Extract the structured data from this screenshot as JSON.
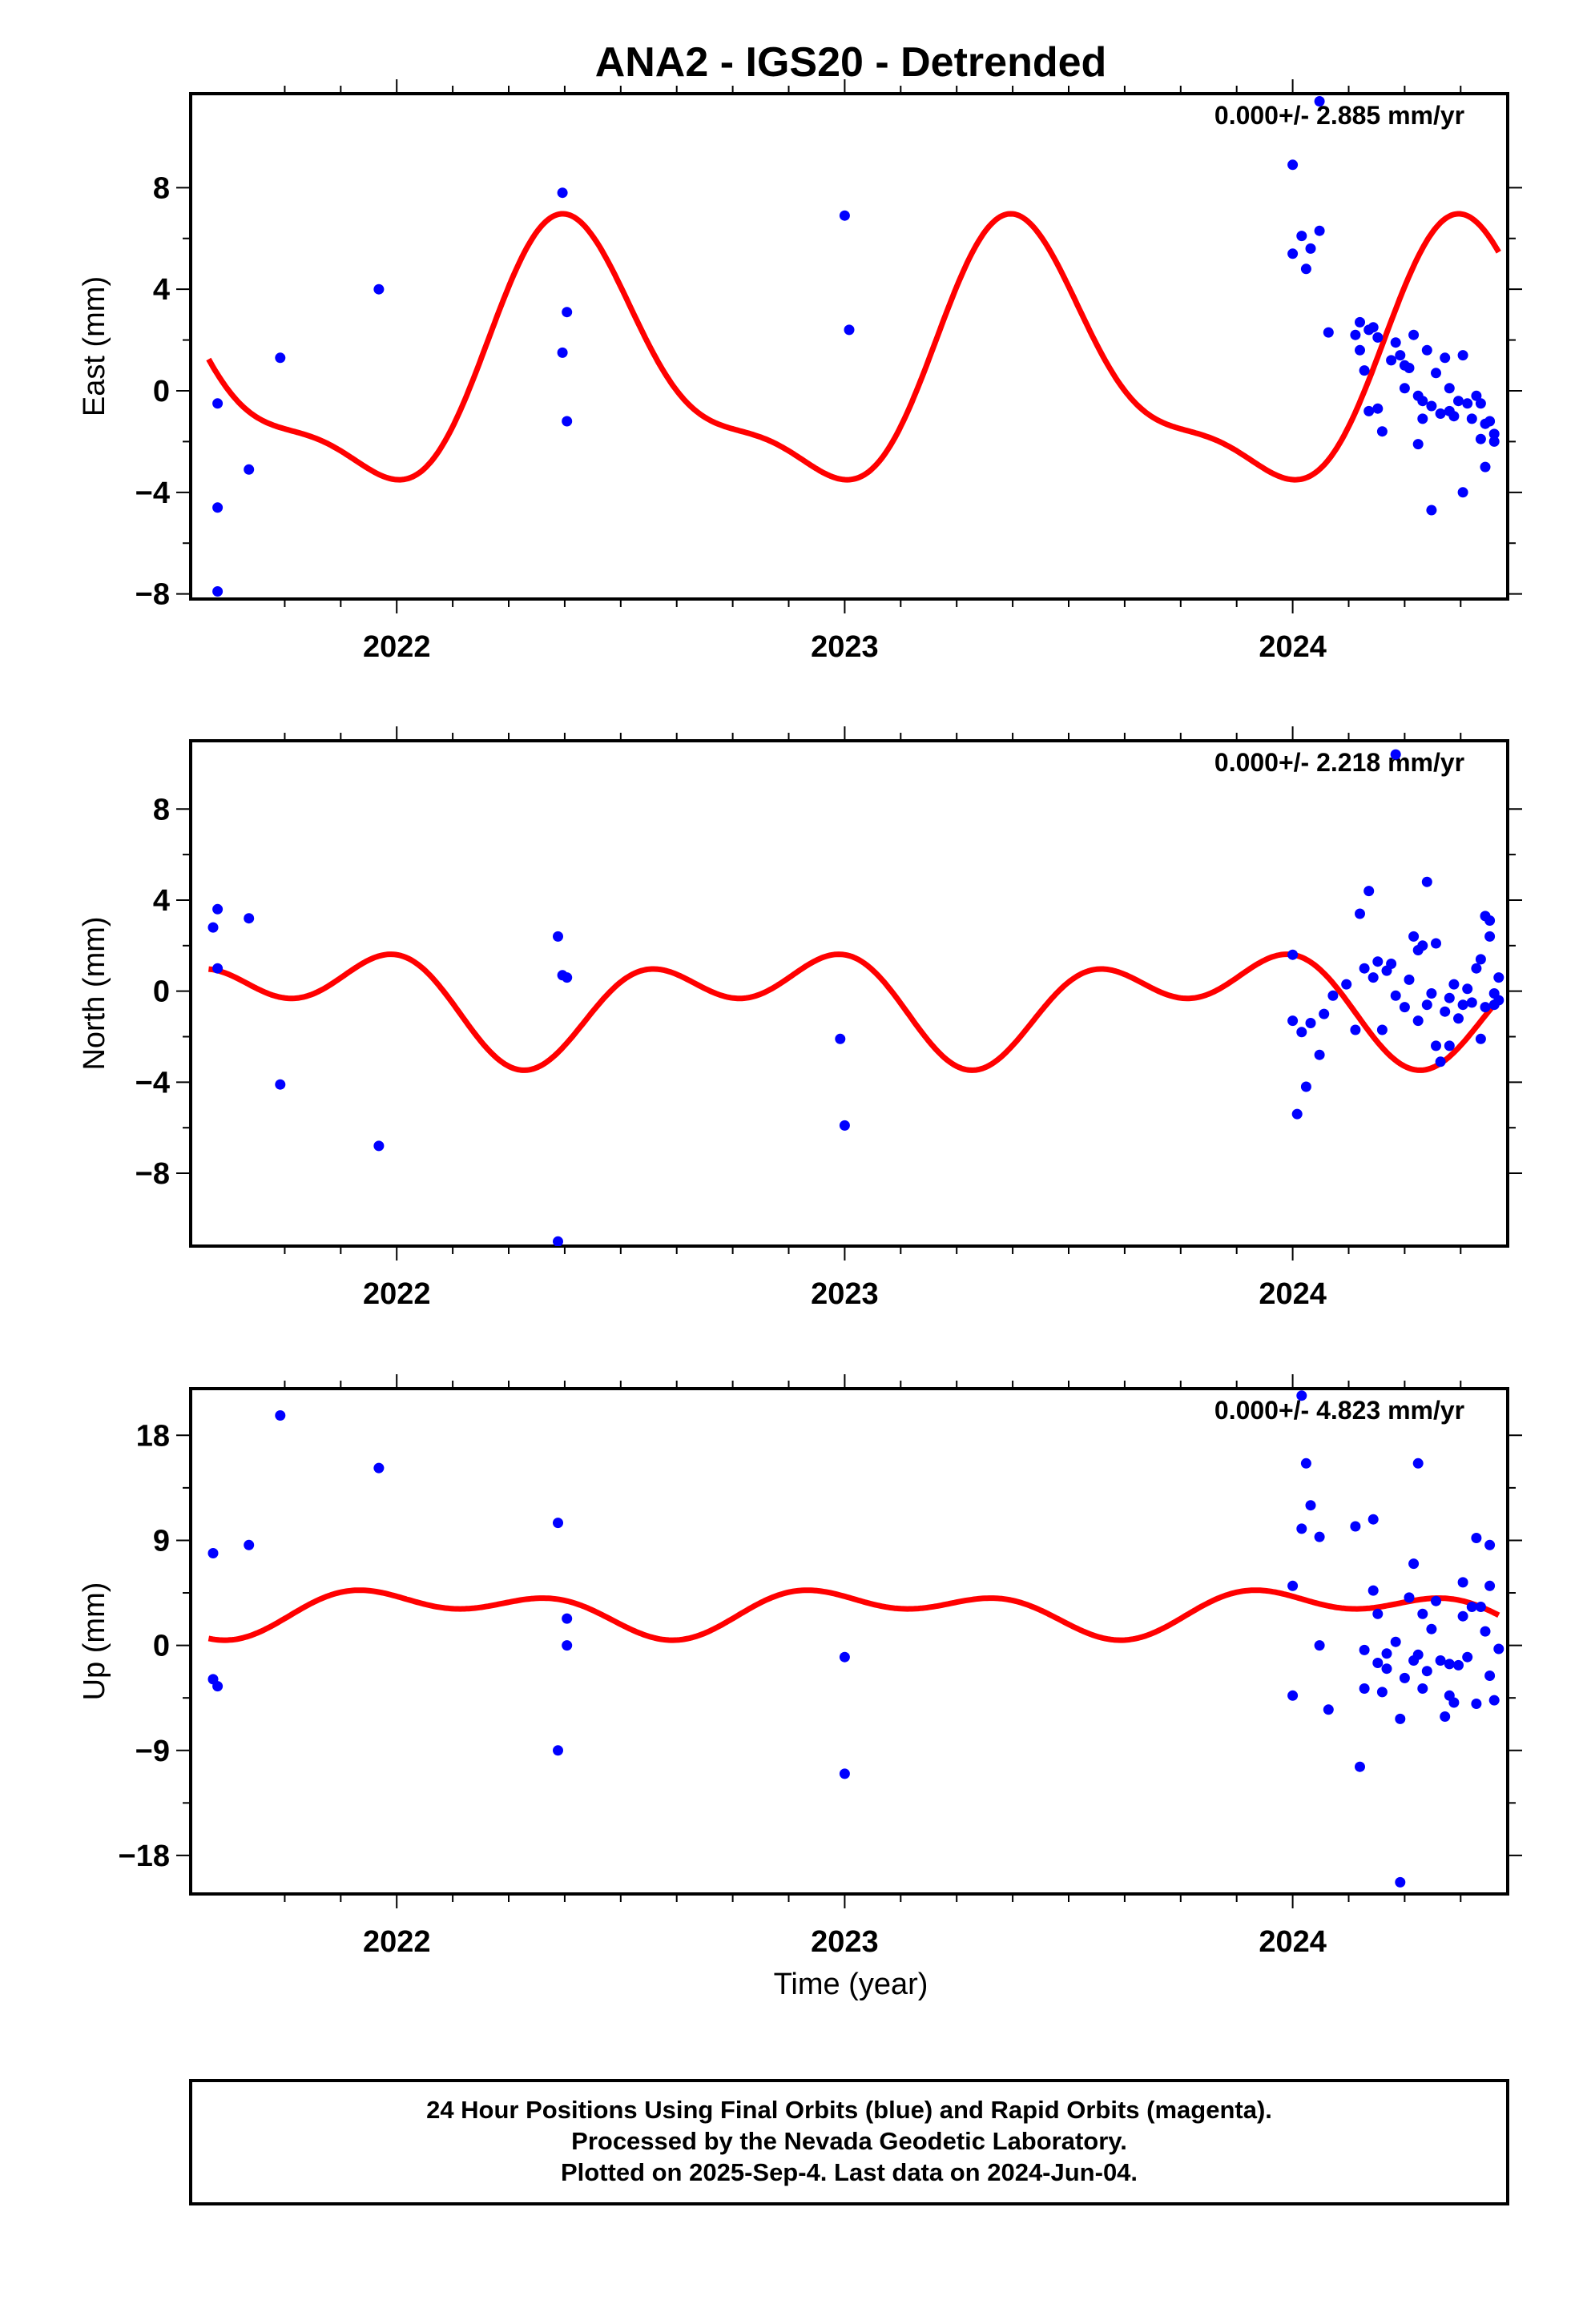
{
  "title": "ANA2 - IGS20 - Detrended",
  "xlabel": "Time (year)",
  "footer": {
    "line1": "24 Hour Positions Using Final Orbits (blue) and Rapid Orbits (magenta).",
    "line2": "Processed by the Nevada Geodetic Laboratory.",
    "line3": "Plotted on 2025-Sep-4. Last data on 2024-Jun-04."
  },
  "colors": {
    "points": "#0000ff",
    "model": "#ff0000",
    "frame": "#000000"
  },
  "chart_data": [
    {
      "type": "scatter",
      "ylabel": "East (mm)",
      "rate": "0.000+/- 2.885 mm/yr",
      "xlim": [
        2021.54,
        2024.48
      ],
      "ylim": [
        -8.2,
        11.7
      ],
      "xticks": [
        2022,
        2023,
        2024
      ],
      "yticks": [
        8,
        4,
        0,
        -4,
        -8
      ],
      "ytick_labels": [
        "8",
        "4",
        "0",
        "−4",
        "−8"
      ],
      "points": [
        [
          2021.6,
          -0.5
        ],
        [
          2021.6,
          -4.6
        ],
        [
          2021.6,
          -7.9
        ],
        [
          2021.67,
          -3.1
        ],
        [
          2021.74,
          1.3
        ],
        [
          2021.96,
          4.0
        ],
        [
          2022.37,
          7.8
        ],
        [
          2022.37,
          1.5
        ],
        [
          2022.38,
          3.1
        ],
        [
          2022.38,
          -1.2
        ],
        [
          2023.0,
          6.9
        ],
        [
          2023.01,
          2.4
        ],
        [
          2024.0,
          8.9
        ],
        [
          2024.0,
          5.4
        ],
        [
          2024.02,
          6.1
        ],
        [
          2024.03,
          4.8
        ],
        [
          2024.04,
          5.6
        ],
        [
          2024.06,
          6.3
        ],
        [
          2024.06,
          11.4
        ],
        [
          2024.08,
          2.3
        ],
        [
          2024.14,
          2.2
        ],
        [
          2024.15,
          1.6
        ],
        [
          2024.15,
          2.7
        ],
        [
          2024.16,
          0.8
        ],
        [
          2024.17,
          -0.8
        ],
        [
          2024.17,
          2.4
        ],
        [
          2024.18,
          2.5
        ],
        [
          2024.19,
          -0.7
        ],
        [
          2024.19,
          2.1
        ],
        [
          2024.2,
          -1.6
        ],
        [
          2024.22,
          1.2
        ],
        [
          2024.23,
          1.9
        ],
        [
          2024.24,
          1.4
        ],
        [
          2024.25,
          1.0
        ],
        [
          2024.25,
          0.1
        ],
        [
          2024.26,
          0.9
        ],
        [
          2024.27,
          2.2
        ],
        [
          2024.28,
          -0.2
        ],
        [
          2024.28,
          -2.1
        ],
        [
          2024.29,
          -0.4
        ],
        [
          2024.29,
          -1.1
        ],
        [
          2024.3,
          1.6
        ],
        [
          2024.31,
          -4.7
        ],
        [
          2024.31,
          -0.6
        ],
        [
          2024.32,
          0.7
        ],
        [
          2024.33,
          -0.9
        ],
        [
          2024.34,
          1.3
        ],
        [
          2024.35,
          -0.8
        ],
        [
          2024.35,
          0.1
        ],
        [
          2024.36,
          -1.0
        ],
        [
          2024.37,
          -0.4
        ],
        [
          2024.38,
          1.4
        ],
        [
          2024.38,
          -4.0
        ],
        [
          2024.39,
          -0.5
        ],
        [
          2024.4,
          -1.1
        ],
        [
          2024.41,
          -0.2
        ],
        [
          2024.42,
          -1.9
        ],
        [
          2024.42,
          -0.5
        ],
        [
          2024.43,
          -1.3
        ],
        [
          2024.43,
          -3.0
        ],
        [
          2024.44,
          -1.2
        ],
        [
          2024.45,
          -2.0
        ],
        [
          2024.45,
          -1.7
        ]
      ],
      "model": {
        "offset": 0.8,
        "annual_a": 2.8,
        "annual_b": -3.8,
        "semi_a": -1.5,
        "semi_b": -0.5,
        "t0": 2021.58,
        "t1": 2024.46
      }
    },
    {
      "type": "scatter",
      "ylabel": "North (mm)",
      "rate": "0.000+/- 2.218 mm/yr",
      "xlim": [
        2021.54,
        2024.48
      ],
      "ylim": [
        -11.2,
        11.0
      ],
      "xticks": [
        2022,
        2023,
        2024
      ],
      "yticks": [
        8,
        4,
        0,
        -4,
        -8
      ],
      "ytick_labels": [
        "8",
        "4",
        "0",
        "−4",
        "−8"
      ],
      "points": [
        [
          2021.59,
          2.8
        ],
        [
          2021.6,
          3.6
        ],
        [
          2021.6,
          1.0
        ],
        [
          2021.67,
          3.2
        ],
        [
          2021.74,
          -4.1
        ],
        [
          2021.96,
          -6.8
        ],
        [
          2022.36,
          -11.0
        ],
        [
          2022.36,
          2.4
        ],
        [
          2022.37,
          0.7
        ],
        [
          2022.38,
          0.6
        ],
        [
          2022.99,
          -2.1
        ],
        [
          2023.0,
          -5.9
        ],
        [
          2024.0,
          1.6
        ],
        [
          2024.0,
          -1.3
        ],
        [
          2024.01,
          -5.4
        ],
        [
          2024.02,
          -1.8
        ],
        [
          2024.03,
          -4.2
        ],
        [
          2024.04,
          -1.4
        ],
        [
          2024.06,
          -2.8
        ],
        [
          2024.07,
          -1.0
        ],
        [
          2024.09,
          -0.2
        ],
        [
          2024.12,
          0.3
        ],
        [
          2024.14,
          -1.7
        ],
        [
          2024.15,
          3.4
        ],
        [
          2024.16,
          1.0
        ],
        [
          2024.17,
          4.4
        ],
        [
          2024.18,
          0.6
        ],
        [
          2024.19,
          1.3
        ],
        [
          2024.2,
          -1.7
        ],
        [
          2024.21,
          0.9
        ],
        [
          2024.22,
          1.2
        ],
        [
          2024.23,
          -0.2
        ],
        [
          2024.23,
          10.4
        ],
        [
          2024.25,
          -0.7
        ],
        [
          2024.26,
          0.5
        ],
        [
          2024.27,
          2.4
        ],
        [
          2024.28,
          -1.3
        ],
        [
          2024.28,
          1.8
        ],
        [
          2024.29,
          2.0
        ],
        [
          2024.3,
          -0.6
        ],
        [
          2024.3,
          4.8
        ],
        [
          2024.31,
          -0.1
        ],
        [
          2024.32,
          2.1
        ],
        [
          2024.32,
          -2.4
        ],
        [
          2024.33,
          -3.1
        ],
        [
          2024.34,
          -0.9
        ],
        [
          2024.35,
          -2.4
        ],
        [
          2024.35,
          -0.3
        ],
        [
          2024.36,
          0.3
        ],
        [
          2024.37,
          -1.2
        ],
        [
          2024.38,
          -0.6
        ],
        [
          2024.39,
          0.1
        ],
        [
          2024.4,
          -0.5
        ],
        [
          2024.41,
          1.0
        ],
        [
          2024.42,
          -2.1
        ],
        [
          2024.42,
          1.4
        ],
        [
          2024.43,
          -0.7
        ],
        [
          2024.43,
          3.3
        ],
        [
          2024.44,
          2.4
        ],
        [
          2024.44,
          3.1
        ],
        [
          2024.45,
          -0.6
        ],
        [
          2024.45,
          -0.1
        ],
        [
          2024.46,
          -0.4
        ],
        [
          2024.46,
          0.6
        ]
      ],
      "model": {
        "offset": -0.4,
        "annual_a": -1.5,
        "annual_b": 0.6,
        "semi_a": 0.5,
        "semi_b": 1.4,
        "t0": 2021.58,
        "t1": 2024.46
      }
    },
    {
      "type": "scatter",
      "ylabel": "Up (mm)",
      "rate": "0.000+/- 4.823 mm/yr",
      "xlim": [
        2021.54,
        2024.48
      ],
      "ylim": [
        -21.3,
        22.0
      ],
      "xticks": [
        2022,
        2023,
        2024
      ],
      "yticks": [
        18,
        9,
        0,
        -9,
        -18
      ],
      "ytick_labels": [
        "18",
        "9",
        "0",
        "−9",
        "−18"
      ],
      "points": [
        [
          2021.59,
          7.9
        ],
        [
          2021.59,
          -2.9
        ],
        [
          2021.6,
          -3.5
        ],
        [
          2021.67,
          8.6
        ],
        [
          2021.74,
          19.7
        ],
        [
          2021.96,
          15.2
        ],
        [
          2022.36,
          10.5
        ],
        [
          2022.36,
          -9.0
        ],
        [
          2022.38,
          2.3
        ],
        [
          2022.38,
          0.0
        ],
        [
          2023.0,
          -1.0
        ],
        [
          2023.0,
          -11.0
        ],
        [
          2024.0,
          5.1
        ],
        [
          2024.0,
          -4.3
        ],
        [
          2024.02,
          21.4
        ],
        [
          2024.02,
          10.0
        ],
        [
          2024.03,
          15.6
        ],
        [
          2024.04,
          12.0
        ],
        [
          2024.06,
          9.3
        ],
        [
          2024.06,
          0.0
        ],
        [
          2024.08,
          -5.5
        ],
        [
          2024.14,
          10.2
        ],
        [
          2024.15,
          -10.4
        ],
        [
          2024.16,
          -3.7
        ],
        [
          2024.16,
          -0.4
        ],
        [
          2024.18,
          10.8
        ],
        [
          2024.18,
          4.7
        ],
        [
          2024.19,
          2.7
        ],
        [
          2024.19,
          -1.5
        ],
        [
          2024.2,
          -4.0
        ],
        [
          2024.21,
          -0.7
        ],
        [
          2024.21,
          -2.0
        ],
        [
          2024.23,
          0.3
        ],
        [
          2024.24,
          -20.3
        ],
        [
          2024.24,
          -6.3
        ],
        [
          2024.25,
          -2.8
        ],
        [
          2024.26,
          4.1
        ],
        [
          2024.27,
          -1.3
        ],
        [
          2024.27,
          7.0
        ],
        [
          2024.28,
          15.6
        ],
        [
          2024.28,
          -0.8
        ],
        [
          2024.29,
          -3.7
        ],
        [
          2024.29,
          2.7
        ],
        [
          2024.3,
          -2.2
        ],
        [
          2024.31,
          1.4
        ],
        [
          2024.32,
          3.8
        ],
        [
          2024.33,
          -1.3
        ],
        [
          2024.34,
          -6.1
        ],
        [
          2024.35,
          -1.6
        ],
        [
          2024.35,
          -4.3
        ],
        [
          2024.36,
          -4.9
        ],
        [
          2024.37,
          -1.7
        ],
        [
          2024.38,
          2.5
        ],
        [
          2024.38,
          5.4
        ],
        [
          2024.39,
          -1.0
        ],
        [
          2024.4,
          3.3
        ],
        [
          2024.41,
          -5.0
        ],
        [
          2024.41,
          9.2
        ],
        [
          2024.42,
          3.3
        ],
        [
          2024.43,
          1.2
        ],
        [
          2024.44,
          -2.6
        ],
        [
          2024.44,
          8.6
        ],
        [
          2024.44,
          5.1
        ],
        [
          2024.45,
          -4.7
        ],
        [
          2024.46,
          -0.3
        ]
      ],
      "model": {
        "offset": 3.0,
        "annual_a": 0.7,
        "annual_b": 1.2,
        "semi_a": -1.2,
        "semi_b": 0.0,
        "t0": 2021.58,
        "t1": 2024.46
      }
    }
  ]
}
